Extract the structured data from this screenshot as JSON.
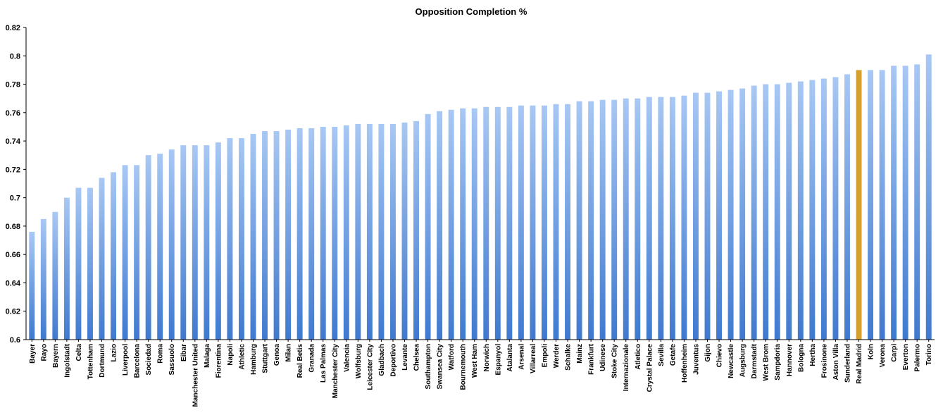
{
  "chart_data": {
    "type": "bar",
    "title": "Opposition Completion %",
    "xlabel": "",
    "ylabel": "",
    "ylim": [
      0.6,
      0.82
    ],
    "yticks": [
      0.6,
      0.62,
      0.64,
      0.66,
      0.68,
      0.7,
      0.72,
      0.74,
      0.76,
      0.78,
      0.8,
      0.82
    ],
    "ytick_labels": [
      "0.6",
      "0.62",
      "0.64",
      "0.66",
      "0.68",
      "0.7",
      "0.72",
      "0.74",
      "0.76",
      "0.78",
      "0.8",
      "0.82"
    ],
    "grid": false,
    "legend": "none",
    "colors": {
      "bar": "#6aa0e8",
      "bar_light": "#a8c8f4",
      "bar_dark": "#3f79cf",
      "highlight": "#d4a030",
      "axis": "#000000"
    },
    "highlight_category": "Real Madrid",
    "categories": [
      "Bayer",
      "Rayo",
      "Bayern",
      "Ingolstadt",
      "Celta",
      "Tottenham",
      "Dortmund",
      "Lazio",
      "Liverpool",
      "Barcelona",
      "Sociedad",
      "Roma",
      "Sassuolo",
      "Eibar",
      "Manchester United",
      "Malaga",
      "Fiorentina",
      "Napoli",
      "Athletic",
      "Hamburg",
      "Stuttgart",
      "Genoa",
      "Milan",
      "Real Betis",
      "Granada",
      "Las Palmas",
      "Manchester City",
      "Valencia",
      "Wolfsburg",
      "Leicester City",
      "Gladbach",
      "Deportivo",
      "Levante",
      "Chelsea",
      "Southampton",
      "Swansea City",
      "Watford",
      "Bournemouth",
      "West Ham",
      "Norwich",
      "Espanyol",
      "Atalanta",
      "Arsenal",
      "Villarreal",
      "Empoli",
      "Werder",
      "Schalke",
      "Mainz",
      "Frankfurt",
      "Udinese",
      "Stoke City",
      "Internazionale",
      "Atletico",
      "Crystal Palace",
      "Sevilla",
      "Getafe",
      "Hoffenheim",
      "Juventus",
      "Gijon",
      "Chievo",
      "Newcastle",
      "Augsburg",
      "Darmstadt",
      "West Brom",
      "Sampdoria",
      "Hannover",
      "Bologna",
      "Hertha",
      "Frosinone",
      "Aston Villa",
      "Sunderland",
      "Real Madrid",
      "Koln",
      "Verona",
      "Carpi",
      "Everton",
      "Palermo",
      "Torino"
    ],
    "values": [
      0.676,
      0.685,
      0.69,
      0.7,
      0.707,
      0.707,
      0.714,
      0.718,
      0.723,
      0.723,
      0.73,
      0.731,
      0.734,
      0.737,
      0.737,
      0.737,
      0.739,
      0.742,
      0.742,
      0.745,
      0.747,
      0.747,
      0.748,
      0.749,
      0.749,
      0.75,
      0.75,
      0.751,
      0.752,
      0.752,
      0.752,
      0.752,
      0.753,
      0.754,
      0.759,
      0.761,
      0.762,
      0.763,
      0.763,
      0.764,
      0.764,
      0.764,
      0.765,
      0.765,
      0.765,
      0.766,
      0.766,
      0.768,
      0.768,
      0.769,
      0.769,
      0.77,
      0.77,
      0.771,
      0.771,
      0.771,
      0.772,
      0.774,
      0.774,
      0.775,
      0.776,
      0.777,
      0.779,
      0.78,
      0.78,
      0.781,
      0.782,
      0.783,
      0.784,
      0.785,
      0.787,
      0.79,
      0.79,
      0.79,
      0.793,
      0.793,
      0.794,
      0.801
    ]
  }
}
